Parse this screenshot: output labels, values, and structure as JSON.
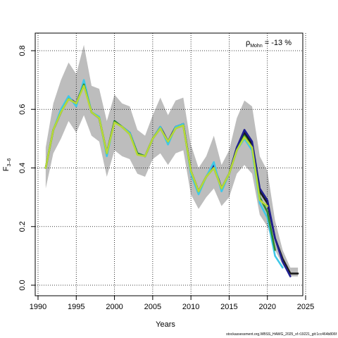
{
  "chart_data": {
    "type": "line",
    "xlabel": "Years",
    "ylabel_main": "F",
    "ylabel_sub": "3–6",
    "xlim": [
      1990,
      2025
    ],
    "ylim": [
      0,
      0.8
    ],
    "x_ticks": [
      1990,
      1995,
      2000,
      2005,
      2010,
      2015,
      2020,
      2025
    ],
    "y_ticks": [
      0.0,
      0.2,
      0.4,
      0.6,
      0.8
    ],
    "y_tick_labels": [
      "0.0",
      "0.2",
      "0.4",
      "0.6",
      "0.8"
    ],
    "grid": true,
    "annotation": {
      "rho_symbol": "ρ",
      "rho_sub": "Mohn",
      "rho_text": " = -13 %"
    },
    "footnote": "stockassessment.org,WBSS_HAWG_2025_sf r19221_git:1cc464b806f",
    "confidence_band": {
      "x": [
        1991,
        1992,
        1993,
        1994,
        1995,
        1996,
        1997,
        1998,
        1999,
        2000,
        2001,
        2002,
        2003,
        2004,
        2005,
        2006,
        2007,
        2008,
        2009,
        2010,
        2011,
        2012,
        2013,
        2014,
        2015,
        2016,
        2017,
        2018,
        2019,
        2020,
        2021,
        2022,
        2023,
        2024
      ],
      "lower": [
        0.33,
        0.45,
        0.5,
        0.56,
        0.52,
        0.58,
        0.51,
        0.49,
        0.37,
        0.46,
        0.44,
        0.43,
        0.38,
        0.37,
        0.43,
        0.45,
        0.41,
        0.45,
        0.46,
        0.31,
        0.26,
        0.3,
        0.33,
        0.27,
        0.3,
        0.38,
        0.41,
        0.38,
        0.24,
        0.2,
        0.12,
        0.07,
        0.03,
        0.03
      ],
      "upper": [
        0.47,
        0.62,
        0.7,
        0.76,
        0.72,
        0.82,
        0.68,
        0.67,
        0.56,
        0.65,
        0.62,
        0.61,
        0.53,
        0.51,
        0.58,
        0.64,
        0.58,
        0.63,
        0.64,
        0.48,
        0.4,
        0.44,
        0.51,
        0.41,
        0.46,
        0.57,
        0.63,
        0.61,
        0.44,
        0.39,
        0.22,
        0.12,
        0.06,
        0.06
      ]
    },
    "series": [
      {
        "color": "#1a1a1a",
        "x": [
          1991,
          1992,
          1993,
          1994,
          1995,
          1996,
          1997,
          1998,
          1999,
          2000,
          2001,
          2002,
          2003,
          2004,
          2005,
          2006,
          2007,
          2008,
          2009,
          2010,
          2011,
          2012,
          2013,
          2014,
          2015,
          2016,
          2017,
          2018,
          2019,
          2020,
          2021,
          2022,
          2023,
          2024
        ],
        "values": [
          0.4,
          0.53,
          0.59,
          0.64,
          0.62,
          0.69,
          0.59,
          0.57,
          0.45,
          0.56,
          0.54,
          0.52,
          0.45,
          0.44,
          0.5,
          0.54,
          0.49,
          0.54,
          0.55,
          0.39,
          0.32,
          0.37,
          0.41,
          0.33,
          0.38,
          0.47,
          0.52,
          0.48,
          0.32,
          0.28,
          0.16,
          0.09,
          0.04,
          0.04
        ]
      },
      {
        "color": "#1f1f8f",
        "x": [
          1991,
          1992,
          1993,
          1994,
          1995,
          1996,
          1997,
          1998,
          1999,
          2000,
          2001,
          2002,
          2003,
          2004,
          2005,
          2006,
          2007,
          2008,
          2009,
          2010,
          2011,
          2012,
          2013,
          2014,
          2015,
          2016,
          2017,
          2018,
          2019,
          2020,
          2021,
          2022,
          2023
        ],
        "values": [
          0.4,
          0.53,
          0.59,
          0.64,
          0.62,
          0.69,
          0.59,
          0.57,
          0.45,
          0.56,
          0.54,
          0.52,
          0.45,
          0.44,
          0.5,
          0.54,
          0.49,
          0.54,
          0.55,
          0.39,
          0.32,
          0.37,
          0.41,
          0.33,
          0.38,
          0.47,
          0.53,
          0.49,
          0.33,
          0.29,
          0.16,
          0.08,
          0.03
        ]
      },
      {
        "color": "#3ec8e8",
        "x": [
          1991,
          1992,
          1993,
          1994,
          1995,
          1996,
          1997,
          1998,
          1999,
          2000,
          2001,
          2002,
          2003,
          2004,
          2005,
          2006,
          2007,
          2008,
          2009,
          2010,
          2011,
          2012,
          2013,
          2014,
          2015,
          2016,
          2017,
          2018,
          2019,
          2020,
          2021,
          2022
        ],
        "values": [
          0.4,
          0.53,
          0.6,
          0.645,
          0.61,
          0.7,
          0.59,
          0.575,
          0.44,
          0.56,
          0.54,
          0.52,
          0.45,
          0.44,
          0.5,
          0.54,
          0.48,
          0.54,
          0.55,
          0.38,
          0.31,
          0.37,
          0.42,
          0.32,
          0.38,
          0.46,
          0.5,
          0.46,
          0.28,
          0.23,
          0.1,
          0.06
        ]
      },
      {
        "color": "#2e8b2e",
        "x": [
          1991,
          1992,
          1993,
          1994,
          1995,
          1996,
          1997,
          1998,
          1999,
          2000,
          2001,
          2002,
          2003,
          2004,
          2005,
          2006,
          2007,
          2008,
          2009,
          2010,
          2011,
          2012,
          2013,
          2014,
          2015,
          2016,
          2017,
          2018,
          2019,
          2020,
          2021
        ],
        "values": [
          0.4,
          0.53,
          0.59,
          0.635,
          0.62,
          0.685,
          0.59,
          0.57,
          0.45,
          0.56,
          0.54,
          0.515,
          0.45,
          0.44,
          0.5,
          0.535,
          0.49,
          0.535,
          0.545,
          0.39,
          0.32,
          0.37,
          0.4,
          0.33,
          0.38,
          0.46,
          0.51,
          0.47,
          0.3,
          0.25,
          0.12
        ]
      },
      {
        "color": "#b8d838",
        "x": [
          1991,
          1992,
          1993,
          1994,
          1995,
          1996,
          1997,
          1998,
          1999,
          2000,
          2001,
          2002,
          2003,
          2004,
          2005,
          2006,
          2007,
          2008,
          2009,
          2010,
          2011,
          2012,
          2013,
          2014,
          2015,
          2016,
          2017,
          2018,
          2019,
          2020
        ],
        "values": [
          0.4,
          0.53,
          0.59,
          0.635,
          0.62,
          0.68,
          0.59,
          0.57,
          0.45,
          0.555,
          0.54,
          0.515,
          0.445,
          0.44,
          0.5,
          0.535,
          0.49,
          0.535,
          0.545,
          0.39,
          0.32,
          0.37,
          0.4,
          0.33,
          0.38,
          0.46,
          0.505,
          0.47,
          0.29,
          0.27
        ]
      }
    ]
  }
}
